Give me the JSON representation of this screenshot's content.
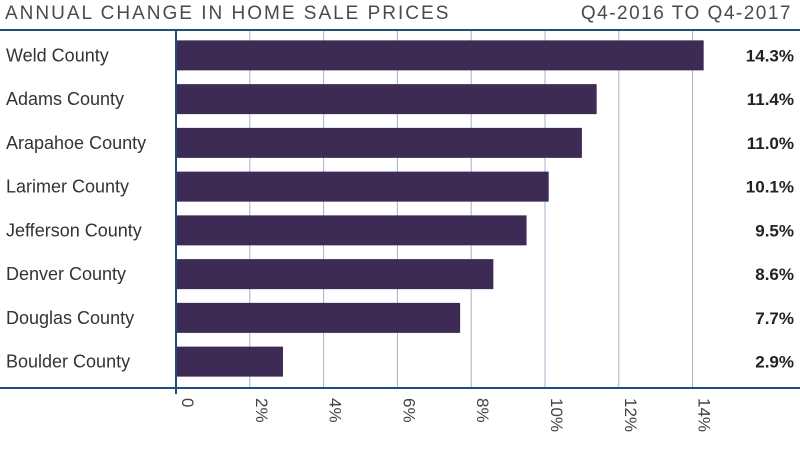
{
  "header": {
    "title": "ANNUAL CHANGE IN HOME SALE PRICES",
    "period": "Q4-2016 TO Q4-2017"
  },
  "colors": {
    "bar": "#3d2b56",
    "grid": "#9fb3c8",
    "axis": "#1f4e79",
    "frame": "#1f4e79"
  },
  "chart_data": {
    "type": "bar",
    "orientation": "horizontal",
    "title": "ANNUAL CHANGE IN HOME SALE PRICES",
    "subtitle": "Q4-2016 TO Q4-2017",
    "categories": [
      "Weld County",
      "Adams County",
      "Arapahoe County",
      "Larimer County",
      "Jefferson County",
      "Denver County",
      "Douglas County",
      "Boulder County"
    ],
    "values": [
      14.3,
      11.4,
      11.0,
      10.1,
      9.5,
      8.6,
      7.7,
      2.9
    ],
    "value_labels": [
      "14.3%",
      "11.4%",
      "11.0%",
      "10.1%",
      "9.5%",
      "8.6%",
      "7.7%",
      "2.9%"
    ],
    "xlim": [
      0,
      15
    ],
    "ticks": [
      0,
      2,
      4,
      6,
      8,
      10,
      12,
      14
    ],
    "tick_labels": [
      "0",
      "2%",
      "4%",
      "6%",
      "8%",
      "10%",
      "12%",
      "14%"
    ],
    "xlabel": "",
    "ylabel": "",
    "grid": true
  }
}
